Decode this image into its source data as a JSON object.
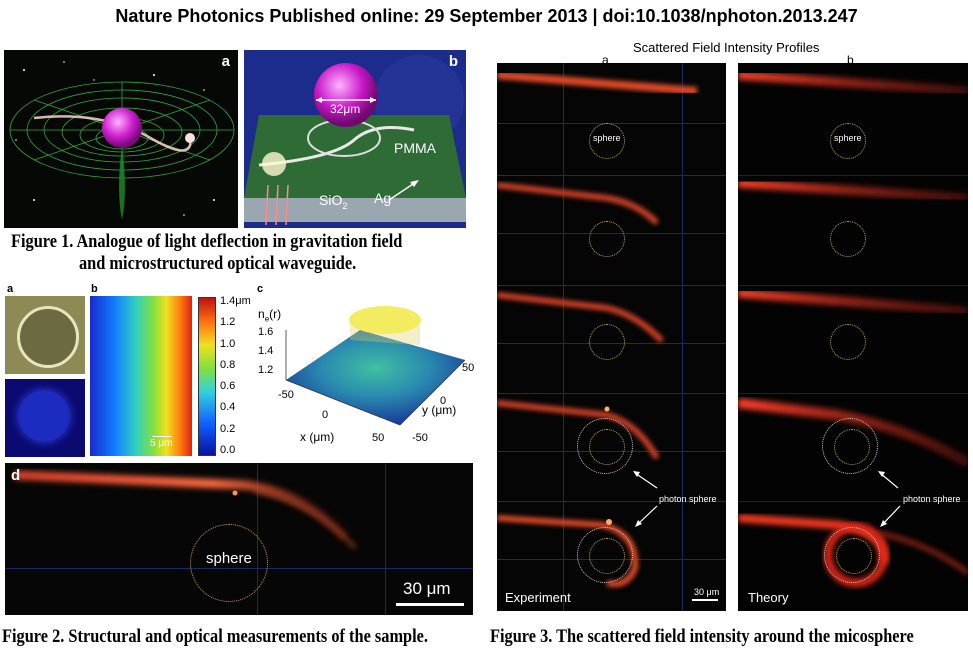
{
  "header": {
    "title": "Nature Photonics Published online: 29 September 2013 | doi:10.1038/nphoton.2013.247"
  },
  "figure1": {
    "panel_a_label": "a",
    "panel_b_label": "b",
    "sphere_size": "32μm",
    "pmma_label": "PMMA",
    "ag_label": "Ag",
    "sio2_label": "SiO",
    "sio2_sub": "2",
    "caption_line1": "Figure 1. Analogue of light deflection in gravitation field",
    "caption_line2": "and microstructured optical waveguide."
  },
  "figure2": {
    "panel_a_label": "a",
    "panel_b_label": "b",
    "panel_c_label": "c",
    "panel_d_label": "d",
    "scale_b": "5 μm",
    "colorbar_ticks": [
      "1.4μm",
      "1.2",
      "1.0",
      "0.8",
      "0.6",
      "0.4",
      "0.2",
      "0.0"
    ],
    "c_zlabel": "n",
    "c_zlabel_sub": "e",
    "c_zlabel_suffix": "(r)",
    "c_zticks": [
      "1.6",
      "1.4",
      "1.2"
    ],
    "c_xlabel": "x (μm)",
    "c_ylabel": "y (μm)",
    "c_xticks": [
      "-50",
      "0",
      "50"
    ],
    "c_yticks": [
      "50",
      "0",
      "-50"
    ],
    "d_sphere": "sphere",
    "d_scale": "30 μm",
    "caption": "Figure 2. Structural and optical measurements of the sample."
  },
  "figure3": {
    "title": "Scattered Field Intensity Profiles",
    "col_a": "a",
    "col_b": "b",
    "sphere_label": "sphere",
    "photon_sphere_label": "photon sphere",
    "experiment_label": "Experiment",
    "theory_label": "Theory",
    "scale": "30 μm",
    "caption": "Figure 3. The scattered field intensity around the micosphere"
  }
}
